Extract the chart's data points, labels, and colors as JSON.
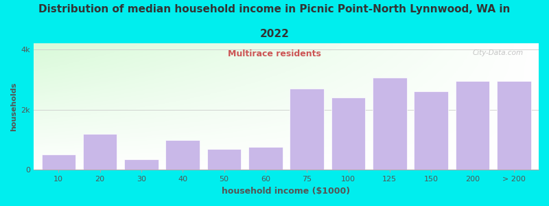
{
  "title_line1": "Distribution of median household income in Picnic Point-North Lynnwood, WA in",
  "title_line2": "2022",
  "subtitle": "Multirace residents",
  "xlabel": "household income ($1000)",
  "ylabel": "households",
  "bar_labels": [
    "10",
    "20",
    "30",
    "40",
    "50",
    "60",
    "75",
    "100",
    "125",
    "150",
    "200",
    "> 200"
  ],
  "bar_values": [
    500,
    1200,
    350,
    1000,
    700,
    750,
    2700,
    2400,
    3050,
    2600,
    2950,
    2950
  ],
  "bar_color": "#c9b8e8",
  "ylim": [
    0,
    4200
  ],
  "ytick_labels": [
    "0",
    "2k",
    "4k"
  ],
  "ytick_values": [
    0,
    2000,
    4000
  ],
  "bg_color": "#00eeee",
  "title_color": "#333333",
  "subtitle_color": "#cc5555",
  "axis_color": "#555555",
  "watermark_text": "City-Data.com",
  "title_fontsize": 11,
  "subtitle_fontsize": 9,
  "xlabel_fontsize": 9,
  "ylabel_fontsize": 8,
  "tick_fontsize": 8,
  "n_bars": 12
}
